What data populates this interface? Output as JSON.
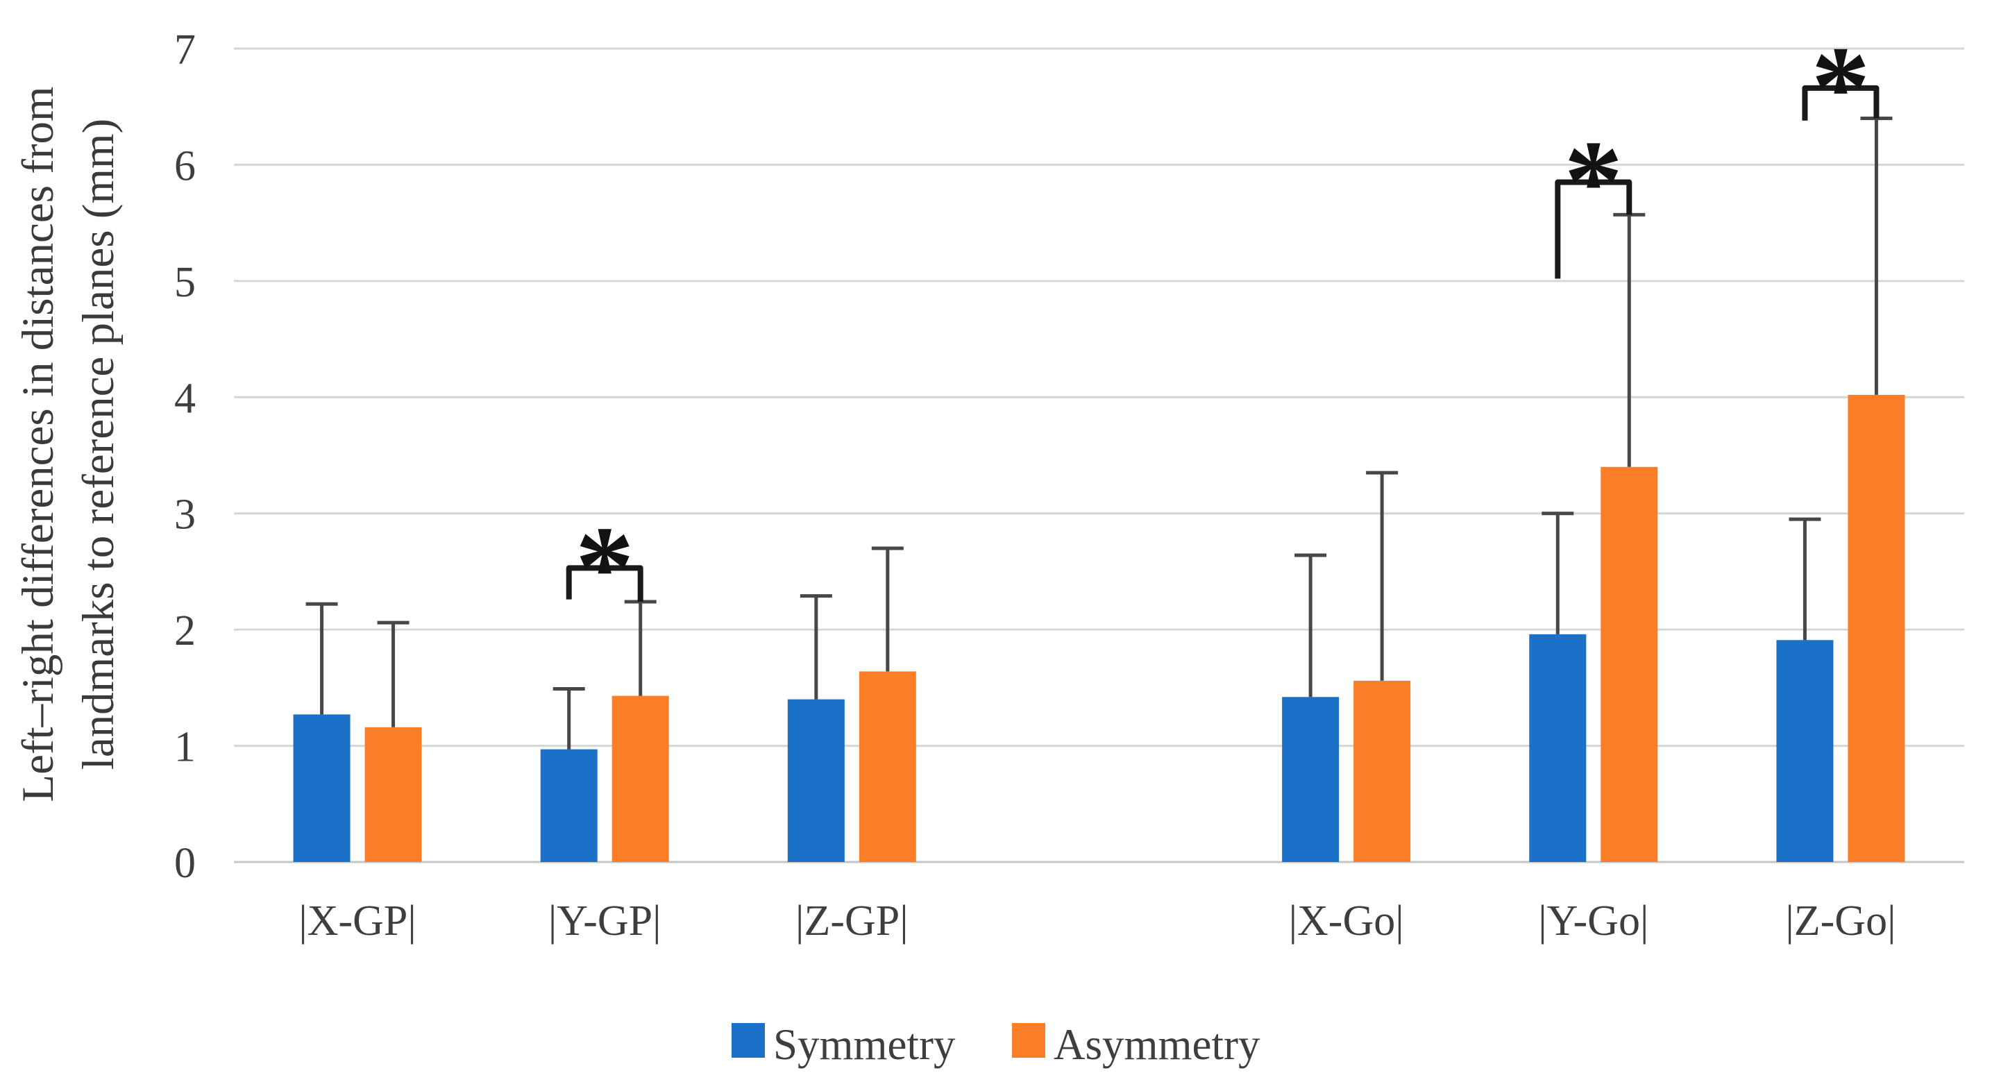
{
  "chart_data": {
    "type": "bar",
    "title": "",
    "ylabel_lines": [
      "Left–right differences in distances from",
      "landmarks to reference planes (mm)"
    ],
    "ylim": [
      0,
      7
    ],
    "yticks": [
      0,
      1,
      2,
      3,
      4,
      5,
      6,
      7
    ],
    "grid": "horizontal",
    "legend_position": "bottom-center",
    "categories": [
      "|X-GP|",
      "|Y-GP|",
      "|Z-GP|",
      "|X-Go|",
      "|Y-Go|",
      "|Z-Go|"
    ],
    "cluster_gap_after": "|Z-GP|",
    "series": [
      {
        "name": "Symmetry",
        "color": "#1B70C8",
        "values": [
          1.27,
          0.97,
          1.4,
          1.42,
          1.96,
          1.91
        ],
        "errors_up": [
          0.95,
          0.52,
          0.89,
          1.22,
          1.04,
          1.04
        ]
      },
      {
        "name": "Asymmetry",
        "color": "#FA7D28",
        "values": [
          1.16,
          1.43,
          1.64,
          1.56,
          3.4,
          4.02
        ],
        "errors_up": [
          0.9,
          0.81,
          1.06,
          1.79,
          2.17,
          2.38
        ]
      }
    ],
    "significance_brackets": [
      {
        "category": "|Y-GP|",
        "label": "*",
        "bar_y": 2.53,
        "left_end_y": 2.26,
        "right_end_y": 2.24
      },
      {
        "category": "|Y-Go|",
        "label": "*",
        "bar_y": 5.85,
        "left_end_y": 5.02,
        "right_end_y": 5.57
      },
      {
        "category": "|Z-Go|",
        "label": "*",
        "bar_y": 6.66,
        "left_end_y": 6.38,
        "right_end_y": 6.4
      }
    ],
    "colors": {
      "grid": "#D6D6D6",
      "axis_line": "#C6C6C6",
      "error_bar": "#474747",
      "bracket": "#1A1A1A",
      "text": "#3E3E3E"
    },
    "legend": [
      {
        "label": "Symmetry",
        "color": "#1B70C8"
      },
      {
        "label": "Asymmetry",
        "color": "#FA7D28"
      }
    ]
  }
}
